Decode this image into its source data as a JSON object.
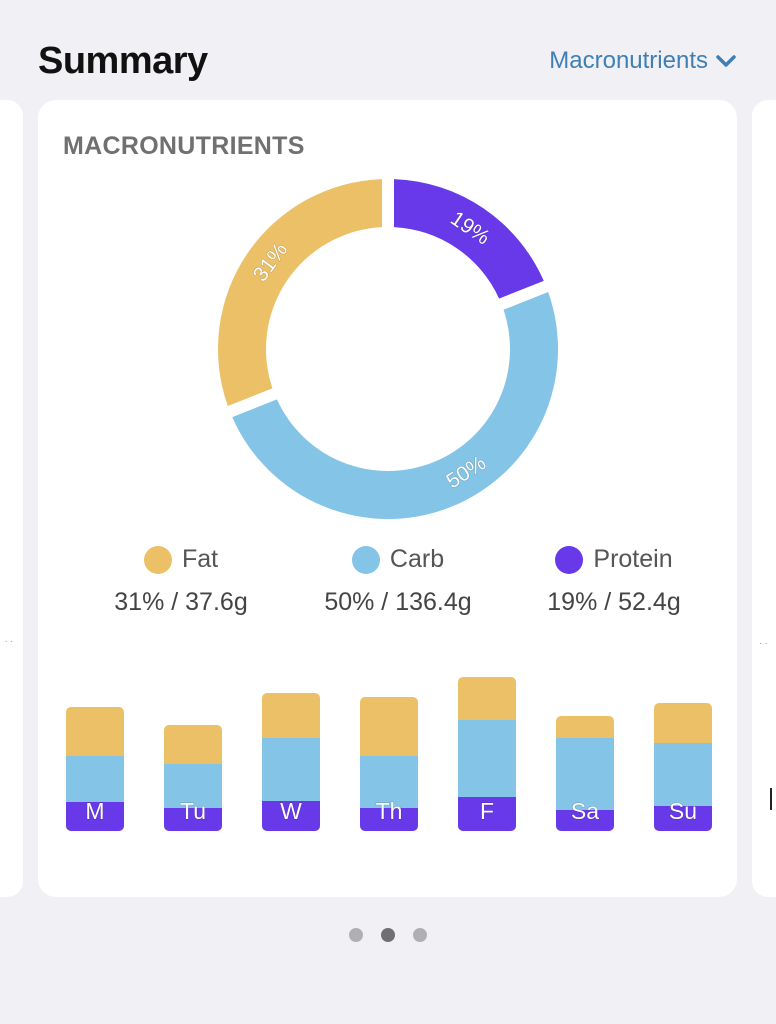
{
  "header": {
    "title": "Summary",
    "dropdown_label": "Macronutrients",
    "dropdown_icon": "chevron-down-icon",
    "accent_color": "#3f7fb3"
  },
  "card": {
    "title": "MACRONUTRIENTS"
  },
  "colors": {
    "fat": "#ebc066",
    "carb": "#84c4e6",
    "protein": "#6739e8"
  },
  "legend": [
    {
      "name": "Fat",
      "value": "31% / 37.6g",
      "color": "#ebc066"
    },
    {
      "name": "Carb",
      "value": "50% / 136.4g",
      "color": "#84c4e6"
    },
    {
      "name": "Protein",
      "value": "19% / 52.4g",
      "color": "#6739e8"
    }
  ],
  "chart_data": [
    {
      "type": "pie",
      "title": "MACRONUTRIENTS",
      "donut": true,
      "start": "top",
      "direction": "clockwise",
      "slices": [
        {
          "label": "Protein",
          "value": 19,
          "text": "19%",
          "color": "#6739e8"
        },
        {
          "label": "Carb",
          "value": 50,
          "text": "50%",
          "color": "#84c4e6"
        },
        {
          "label": "Fat",
          "value": 31,
          "text": "31%",
          "color": "#ebc066"
        }
      ]
    },
    {
      "type": "bar",
      "stacked": true,
      "categories": [
        "M",
        "Tu",
        "W",
        "Th",
        "F",
        "Sa",
        "Su"
      ],
      "series": [
        {
          "name": "Protein",
          "color": "#6739e8",
          "values": [
            29,
            23,
            30,
            23,
            34,
            21,
            25
          ]
        },
        {
          "name": "Carb",
          "color": "#84c4e6",
          "values": [
            46,
            44,
            63,
            52,
            77,
            72,
            63
          ]
        },
        {
          "name": "Fat",
          "color": "#ebc066",
          "values": [
            49,
            39,
            45,
            59,
            43,
            22,
            40
          ]
        }
      ],
      "ylim": [
        0,
        160
      ],
      "axes_visible": false
    }
  ],
  "pager": {
    "count": 3,
    "active_index": 1
  }
}
